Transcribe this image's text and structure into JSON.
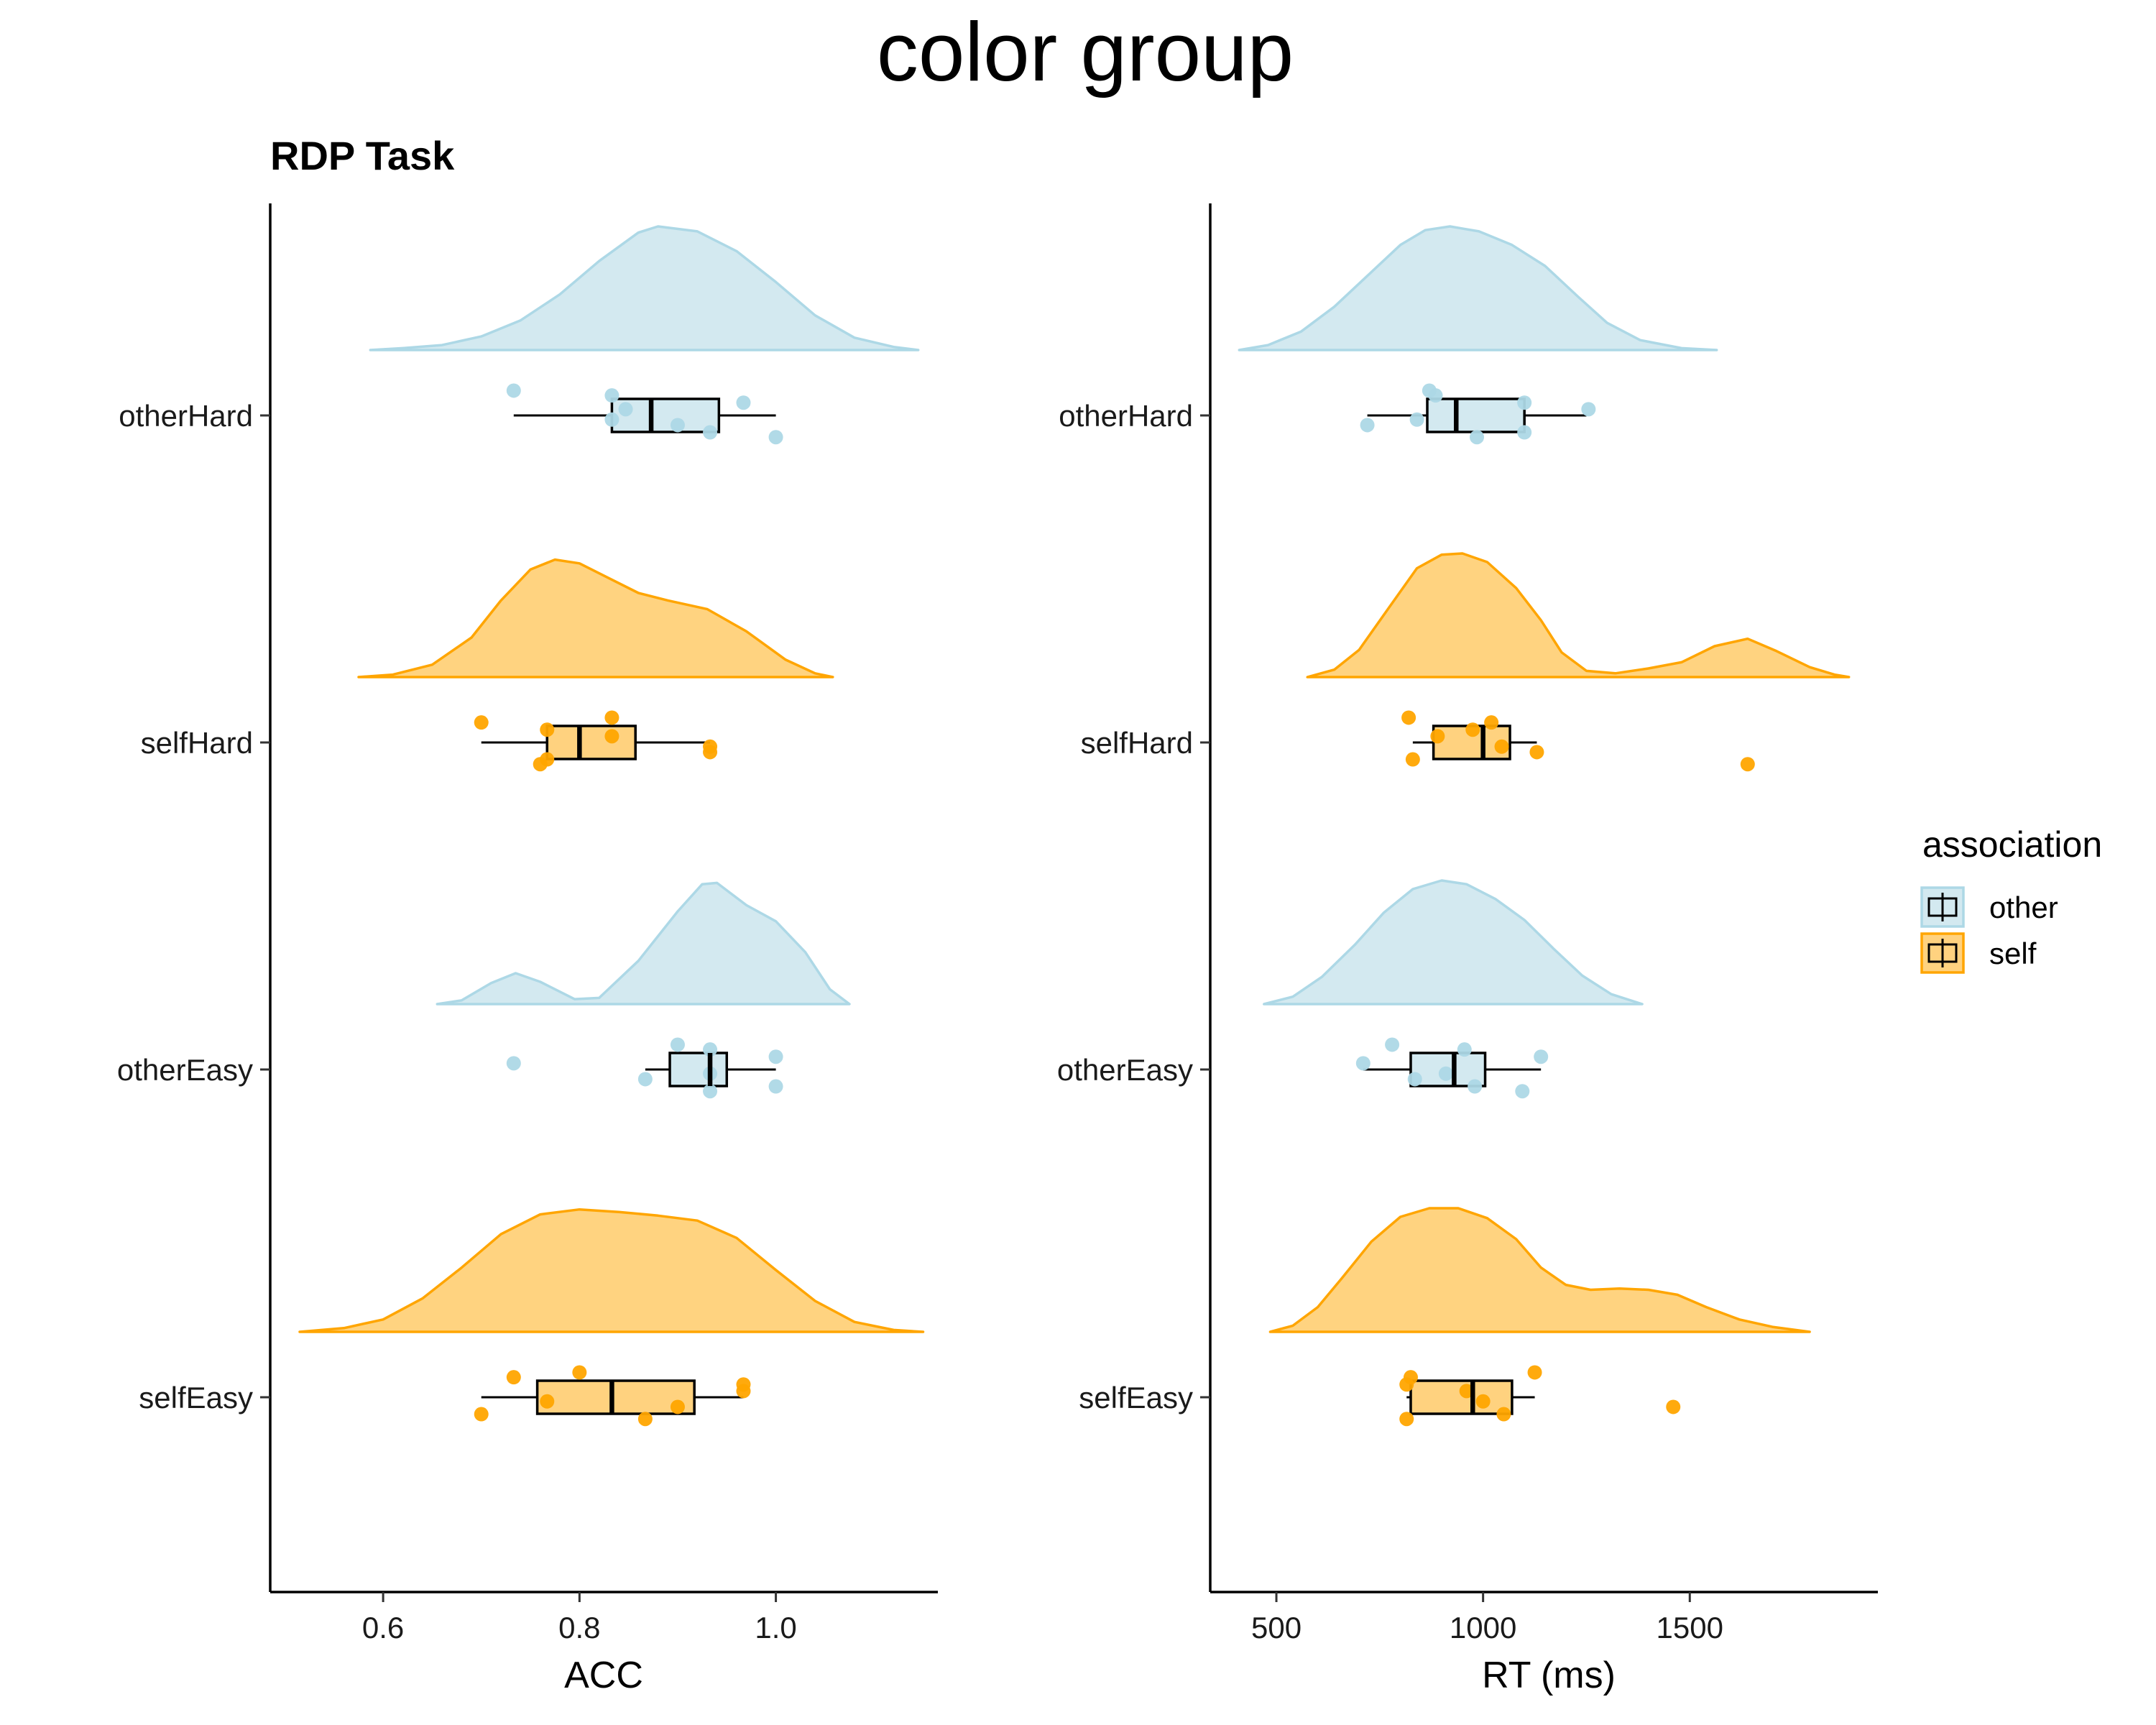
{
  "chart_data": {
    "type": "raincloud",
    "suptitle": "color group",
    "subtitle": "RDP Task",
    "categories": [
      "otherHard",
      "selfHard",
      "otherEasy",
      "selfEasy"
    ],
    "colors": {
      "other": "#add8e6",
      "self": "#ffa500"
    },
    "legend": {
      "title": "association",
      "placement": "right",
      "entries": [
        {
          "label": "other",
          "key": "other"
        },
        {
          "label": "self",
          "key": "self"
        }
      ]
    },
    "panels": [
      {
        "xlabel": "ACC",
        "xlim": [
          0.485,
          1.165
        ],
        "xticks": [
          0.6,
          0.8,
          1.0
        ],
        "xtick_labels": [
          "0.6",
          "0.8",
          "1.0"
        ],
        "groups": [
          {
            "category": "otherHard",
            "association": "other",
            "box": {
              "min": 0.733,
              "q1": 0.833,
              "median": 0.873,
              "q3": 0.942,
              "max": 1.0
            },
            "points": [
              0.733,
              0.933,
              0.847,
              0.9,
              0.833,
              1.0,
              0.967,
              0.833
            ],
            "density": [
              [
                0.587,
                0.0
              ],
              [
                0.62,
                0.015
              ],
              [
                0.66,
                0.04
              ],
              [
                0.7,
                0.11
              ],
              [
                0.74,
                0.24
              ],
              [
                0.78,
                0.45
              ],
              [
                0.82,
                0.72
              ],
              [
                0.86,
                0.95
              ],
              [
                0.88,
                1.0
              ],
              [
                0.92,
                0.96
              ],
              [
                0.96,
                0.8
              ],
              [
                1.0,
                0.55
              ],
              [
                1.04,
                0.28
              ],
              [
                1.08,
                0.1
              ],
              [
                1.12,
                0.025
              ],
              [
                1.145,
                0.0
              ]
            ]
          },
          {
            "category": "selfHard",
            "association": "self",
            "box": {
              "min": 0.7,
              "q1": 0.767,
              "median": 0.8,
              "q3": 0.857,
              "max": 0.933
            },
            "points": [
              0.833,
              0.767,
              0.833,
              0.933,
              0.7,
              0.76,
              0.767,
              0.933
            ],
            "density": [
              [
                0.575,
                0.0
              ],
              [
                0.61,
                0.02
              ],
              [
                0.65,
                0.1
              ],
              [
                0.69,
                0.32
              ],
              [
                0.72,
                0.62
              ],
              [
                0.75,
                0.87
              ],
              [
                0.775,
                0.95
              ],
              [
                0.8,
                0.92
              ],
              [
                0.83,
                0.8
              ],
              [
                0.86,
                0.68
              ],
              [
                0.89,
                0.62
              ],
              [
                0.93,
                0.55
              ],
              [
                0.97,
                0.37
              ],
              [
                1.01,
                0.14
              ],
              [
                1.04,
                0.03
              ],
              [
                1.058,
                0.0
              ]
            ]
          },
          {
            "category": "otherEasy",
            "association": "other",
            "box": {
              "min": 0.867,
              "q1": 0.892,
              "median": 0.933,
              "q3": 0.95,
              "max": 1.0
            },
            "points": [
              0.9,
              1.0,
              0.733,
              0.867,
              0.933,
              0.933,
              1.0,
              0.933
            ],
            "density": [
              [
                0.655,
                0.0
              ],
              [
                0.68,
                0.03
              ],
              [
                0.71,
                0.17
              ],
              [
                0.735,
                0.25
              ],
              [
                0.76,
                0.18
              ],
              [
                0.795,
                0.04
              ],
              [
                0.82,
                0.05
              ],
              [
                0.86,
                0.35
              ],
              [
                0.9,
                0.75
              ],
              [
                0.925,
                0.97
              ],
              [
                0.94,
                0.98
              ],
              [
                0.97,
                0.8
              ],
              [
                1.0,
                0.67
              ],
              [
                1.03,
                0.42
              ],
              [
                1.055,
                0.12
              ],
              [
                1.075,
                0.0
              ]
            ]
          },
          {
            "category": "selfEasy",
            "association": "self",
            "box": {
              "min": 0.7,
              "q1": 0.757,
              "median": 0.833,
              "q3": 0.917,
              "max": 0.967
            },
            "points": [
              0.8,
              0.7,
              0.967,
              0.9,
              0.733,
              0.867,
              0.967,
              0.767
            ],
            "density": [
              [
                0.515,
                0.0
              ],
              [
                0.56,
                0.03
              ],
              [
                0.6,
                0.1
              ],
              [
                0.64,
                0.27
              ],
              [
                0.68,
                0.52
              ],
              [
                0.72,
                0.79
              ],
              [
                0.76,
                0.95
              ],
              [
                0.8,
                0.99
              ],
              [
                0.84,
                0.97
              ],
              [
                0.88,
                0.94
              ],
              [
                0.92,
                0.9
              ],
              [
                0.96,
                0.76
              ],
              [
                1.0,
                0.5
              ],
              [
                1.04,
                0.25
              ],
              [
                1.08,
                0.08
              ],
              [
                1.12,
                0.015
              ],
              [
                1.15,
                0.0
              ]
            ]
          }
        ]
      },
      {
        "xlabel": "RT (ms)",
        "xlim": [
          340,
          1955
        ],
        "xticks": [
          500,
          1000,
          1500
        ],
        "xtick_labels": [
          "500",
          "1000",
          "1500"
        ],
        "groups": [
          {
            "category": "otherHard",
            "association": "other",
            "box": {
              "min": 720,
              "q1": 865,
              "median": 935,
              "q3": 1100,
              "max": 1250
            },
            "points": [
              870,
              1100,
              1255,
              720,
              885,
              985,
              1100,
              840
            ],
            "density": [
              [
                410,
                0.0
              ],
              [
                480,
                0.04
              ],
              [
                560,
                0.15
              ],
              [
                640,
                0.35
              ],
              [
                720,
                0.6
              ],
              [
                800,
                0.85
              ],
              [
                860,
                0.97
              ],
              [
                920,
                1.0
              ],
              [
                990,
                0.96
              ],
              [
                1070,
                0.85
              ],
              [
                1150,
                0.68
              ],
              [
                1230,
                0.43
              ],
              [
                1300,
                0.22
              ],
              [
                1380,
                0.08
              ],
              [
                1480,
                0.015
              ],
              [
                1565,
                0.0
              ]
            ]
          },
          {
            "category": "selfHard",
            "association": "self",
            "box": {
              "min": 830,
              "q1": 880,
              "median": 1000,
              "q3": 1065,
              "max": 1130
            },
            "points": [
              820,
              830,
              890,
              1130,
              1020,
              1640,
              975,
              1045
            ],
            "density": [
              [
                575,
                0.0
              ],
              [
                640,
                0.06
              ],
              [
                700,
                0.22
              ],
              [
                770,
                0.55
              ],
              [
                840,
                0.88
              ],
              [
                900,
                0.99
              ],
              [
                950,
                1.0
              ],
              [
                1010,
                0.93
              ],
              [
                1080,
                0.72
              ],
              [
                1140,
                0.46
              ],
              [
                1190,
                0.2
              ],
              [
                1250,
                0.05
              ],
              [
                1320,
                0.03
              ],
              [
                1400,
                0.07
              ],
              [
                1480,
                0.12
              ],
              [
                1560,
                0.25
              ],
              [
                1640,
                0.31
              ],
              [
                1710,
                0.21
              ],
              [
                1790,
                0.08
              ],
              [
                1850,
                0.02
              ],
              [
                1885,
                0.0
              ]
            ]
          },
          {
            "category": "otherEasy",
            "association": "other",
            "box": {
              "min": 710,
              "q1": 825,
              "median": 930,
              "q3": 1005,
              "max": 1140
            },
            "points": [
              780,
              980,
              710,
              835,
              955,
              1095,
              1140,
              910
            ],
            "density": [
              [
                470,
                0.0
              ],
              [
                540,
                0.06
              ],
              [
                610,
                0.22
              ],
              [
                690,
                0.48
              ],
              [
                760,
                0.74
              ],
              [
                830,
                0.93
              ],
              [
                900,
                1.0
              ],
              [
                960,
                0.97
              ],
              [
                1030,
                0.85
              ],
              [
                1100,
                0.68
              ],
              [
                1170,
                0.45
              ],
              [
                1240,
                0.23
              ],
              [
                1310,
                0.08
              ],
              [
                1385,
                0.0
              ]
            ]
          },
          {
            "category": "selfEasy",
            "association": "self",
            "box": {
              "min": 815,
              "q1": 825,
              "median": 975,
              "q3": 1070,
              "max": 1125
            },
            "points": [
              1125,
              1050,
              960,
              1460,
              825,
              815,
              815,
              1000
            ],
            "density": [
              [
                485,
                0.0
              ],
              [
                540,
                0.05
              ],
              [
                600,
                0.2
              ],
              [
                660,
                0.44
              ],
              [
                730,
                0.73
              ],
              [
                800,
                0.93
              ],
              [
                870,
                1.0
              ],
              [
                940,
                1.0
              ],
              [
                1010,
                0.92
              ],
              [
                1080,
                0.75
              ],
              [
                1140,
                0.52
              ],
              [
                1200,
                0.38
              ],
              [
                1260,
                0.34
              ],
              [
                1330,
                0.35
              ],
              [
                1400,
                0.34
              ],
              [
                1470,
                0.3
              ],
              [
                1540,
                0.2
              ],
              [
                1620,
                0.1
              ],
              [
                1700,
                0.04
              ],
              [
                1790,
                0.0
              ]
            ]
          }
        ]
      }
    ]
  }
}
